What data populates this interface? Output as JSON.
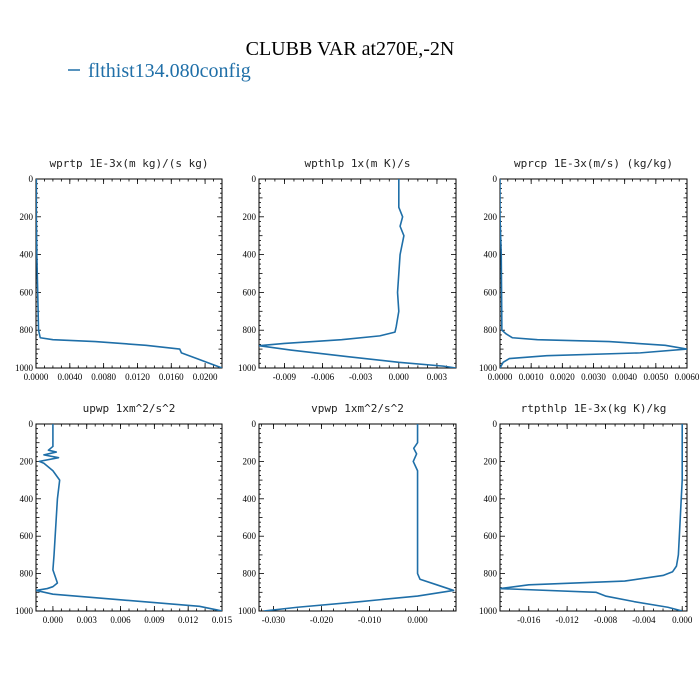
{
  "figure": {
    "title": "CLUBB VAR at270E,-2N",
    "legend_label": "flthist134.080config",
    "line_color": "#1f6fa8"
  },
  "chart_data": [
    {
      "type": "line",
      "title": "wprtp  1E-3x(m kg)/(s kg)",
      "xlim": [
        0.0,
        0.022
      ],
      "ylim": [
        1000,
        0
      ],
      "xticks": [
        0.0,
        0.004,
        0.008,
        0.012,
        0.016,
        0.02
      ],
      "xtick_labels": [
        "0.0000",
        "0.0040",
        "0.0080",
        "0.0120",
        "0.0160",
        "0.0200"
      ],
      "yticks": [
        0,
        200,
        400,
        600,
        800,
        1000
      ],
      "series": [
        {
          "x": [
            4e-05,
            4e-05,
            0.0001,
            0.0002,
            0.0003,
            0.0004,
            0.0005,
            0.002,
            0.007,
            0.013,
            0.017,
            0.0172,
            0.019,
            0.0205,
            0.022
          ],
          "y": [
            0,
            200,
            400,
            600,
            800,
            820,
            840,
            850,
            860,
            880,
            900,
            920,
            950,
            975,
            1000
          ]
        }
      ]
    },
    {
      "type": "line",
      "title": "wpthlp  1x(m K)/s",
      "xlim": [
        -0.011,
        0.0045
      ],
      "ylim": [
        1000,
        0
      ],
      "xticks": [
        -0.009,
        -0.006,
        -0.003,
        0.0,
        0.003
      ],
      "xtick_labels": [
        "-0.009",
        "-0.006",
        "-0.003",
        "0.000",
        "0.003"
      ],
      "yticks": [
        0,
        200,
        400,
        600,
        800,
        1000
      ],
      "series": [
        {
          "x": [
            0.0,
            0.0,
            0.0003,
            0.0001,
            0.0004,
            0.0001,
            0.0,
            -0.0001,
            0.0,
            -0.0002,
            -0.0003,
            -0.0015,
            -0.0045,
            -0.009,
            -0.011,
            -0.0085,
            -0.004,
            0.0,
            0.0035,
            0.0045
          ],
          "y": [
            0,
            150,
            200,
            250,
            300,
            400,
            500,
            600,
            700,
            780,
            810,
            830,
            850,
            870,
            882,
            905,
            940,
            970,
            990,
            1000
          ]
        }
      ]
    },
    {
      "type": "line",
      "title": "wprcp  1E-3x(m/s) (kg/kg)",
      "xlim": [
        0.0,
        0.006
      ],
      "ylim": [
        1000,
        0
      ],
      "xticks": [
        0.0,
        0.001,
        0.002,
        0.003,
        0.004,
        0.005,
        0.006
      ],
      "xtick_labels": [
        "0.0000",
        "0.0010",
        "0.0020",
        "0.0030",
        "0.0040",
        "0.0050",
        "0.0060"
      ],
      "yticks": [
        0,
        200,
        400,
        600,
        800,
        1000
      ],
      "series": [
        {
          "x": [
            0.0,
            0.0,
            4e-05,
            5e-05,
            6e-05,
            0.0002,
            0.0004,
            0.0012,
            0.0035,
            0.0053,
            0.006,
            0.0045,
            0.0015,
            0.0003,
            0.0001,
            0.0
          ],
          "y": [
            0,
            200,
            400,
            600,
            800,
            820,
            840,
            850,
            860,
            880,
            900,
            920,
            935,
            950,
            970,
            1000
          ]
        }
      ]
    },
    {
      "type": "line",
      "title": "upwp  1xm^2/s^2",
      "xlim": [
        -0.0015,
        0.015
      ],
      "ylim": [
        1000,
        0
      ],
      "xticks": [
        0.0,
        0.003,
        0.006,
        0.009,
        0.012,
        0.015
      ],
      "xtick_labels": [
        "0.000",
        "0.003",
        "0.006",
        "0.009",
        "0.012",
        "0.015"
      ],
      "yticks": [
        0,
        200,
        400,
        600,
        800,
        1000
      ],
      "series": [
        {
          "x": [
            0.0,
            0.0,
            -0.0004,
            0.0003,
            -0.0008,
            0.0005,
            -0.0012,
            -0.0008,
            0.0,
            0.0006,
            0.0004,
            0.0003,
            0.0002,
            0.0001,
            0.0,
            0.0004,
            0.0,
            -0.0005,
            -0.0015,
            0.0,
            0.006,
            0.013,
            0.015
          ],
          "y": [
            0,
            120,
            140,
            150,
            165,
            180,
            200,
            210,
            250,
            300,
            400,
            500,
            600,
            700,
            780,
            850,
            870,
            880,
            890,
            910,
            940,
            975,
            1000
          ]
        }
      ]
    },
    {
      "type": "line",
      "title": "vpwp  1xm^2/s^2",
      "xlim": [
        -0.033,
        0.008
      ],
      "ylim": [
        1000,
        0
      ],
      "xticks": [
        -0.03,
        -0.02,
        -0.01,
        0.0
      ],
      "xtick_labels": [
        "-0.030",
        "-0.020",
        "-0.010",
        "0.000"
      ],
      "yticks": [
        0,
        200,
        400,
        600,
        800,
        1000
      ],
      "series": [
        {
          "x": [
            0.0,
            0.0,
            -0.0008,
            -0.0002,
            -0.0009,
            0.0,
            0.0,
            0.0,
            0.0,
            0.0,
            0.0005,
            0.004,
            0.0075,
            0.0,
            -0.012,
            -0.025,
            -0.032
          ],
          "y": [
            0,
            100,
            130,
            160,
            200,
            250,
            400,
            600,
            700,
            800,
            830,
            860,
            890,
            920,
            950,
            980,
            1000
          ]
        }
      ]
    },
    {
      "type": "line",
      "title": "rtpthlp  1E-3x(kg K)/kg",
      "xlim": [
        -0.019,
        0.0005
      ],
      "ylim": [
        1000,
        0
      ],
      "xticks": [
        -0.016,
        -0.012,
        -0.008,
        -0.004,
        0.0
      ],
      "xtick_labels": [
        "-0.016",
        "-0.012",
        "-0.008",
        "-0.004",
        "0.000"
      ],
      "yticks": [
        0,
        200,
        400,
        600,
        800,
        1000
      ],
      "series": [
        {
          "x": [
            0.0,
            0.0,
            -0.0002,
            -0.0004,
            -0.0006,
            -0.001,
            -0.002,
            -0.006,
            -0.016,
            -0.019,
            -0.009,
            -0.008,
            -0.005,
            -0.0015,
            0.0
          ],
          "y": [
            0,
            300,
            500,
            700,
            760,
            790,
            810,
            840,
            860,
            880,
            900,
            920,
            950,
            980,
            1000
          ]
        }
      ]
    }
  ]
}
